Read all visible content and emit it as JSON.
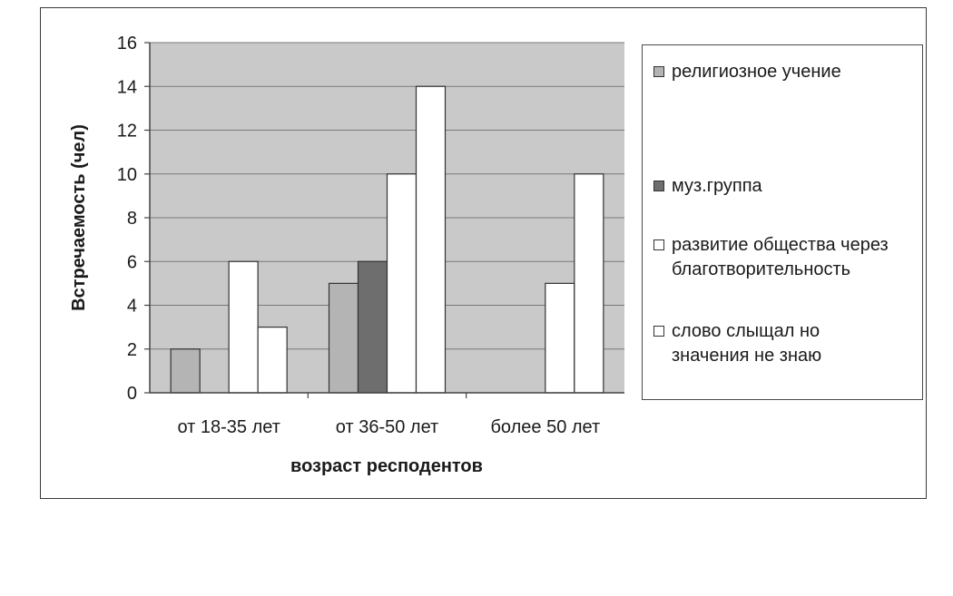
{
  "chart_data": {
    "type": "bar",
    "title": "",
    "xlabel": "возраст респодентов",
    "ylabel": "Встречаемость (чел)",
    "ylim": [
      0,
      16
    ],
    "yticks": [
      0,
      2,
      4,
      6,
      8,
      10,
      12,
      14,
      16
    ],
    "grid": true,
    "legend_position": "right",
    "categories": [
      "от 18-35 лет",
      "от 36-50 лет",
      "более 50 лет"
    ],
    "series": [
      {
        "name": "религиозное учение",
        "values": [
          2,
          5,
          0
        ],
        "color": "#b4b4b4"
      },
      {
        "name": "муз.группа",
        "values": [
          0,
          6,
          0
        ],
        "color": "#6e6e6e"
      },
      {
        "name": "развитие общества через благотворительность",
        "values": [
          6,
          10,
          5
        ],
        "color": "#ffffff"
      },
      {
        "name": "слово слыщал но значения не знаю",
        "values": [
          3,
          14,
          10
        ],
        "color": "#ffffff"
      }
    ],
    "plot_background": "#c9c9c9"
  }
}
